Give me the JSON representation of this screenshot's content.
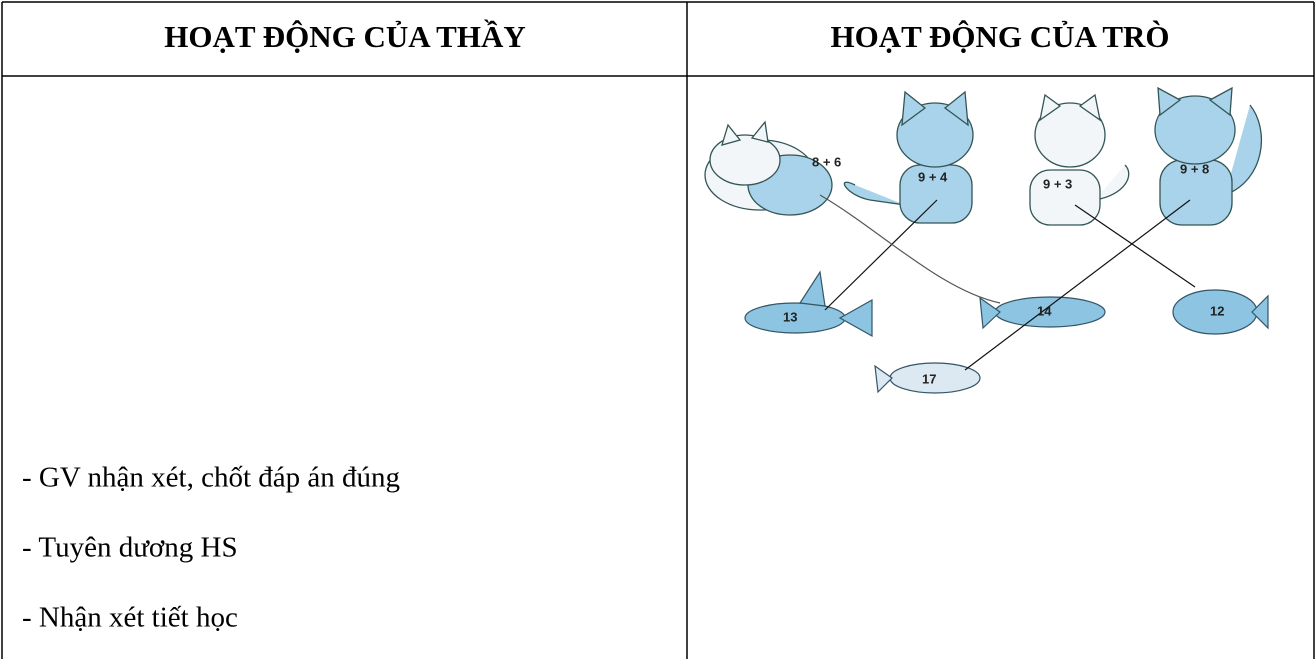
{
  "header": {
    "left": "HOẠT ĐỘNG CỦA THẦY",
    "right": "HOẠT ĐỘNG CỦA TRÒ"
  },
  "left_column": {
    "lines": [
      "- GV nhận xét, chốt đáp án đúng",
      "- Tuyên dương HS",
      "- Nhận xét tiết học"
    ]
  },
  "illustration": {
    "cats": [
      "8 + 6",
      "9 + 4",
      "9 + 3",
      "9 + 8"
    ],
    "fish": [
      "13",
      "14",
      "12",
      "17"
    ]
  }
}
